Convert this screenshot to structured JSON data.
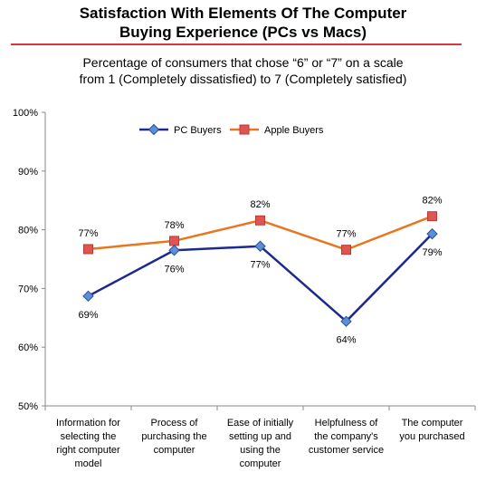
{
  "chart_data": {
    "type": "line",
    "title_lines": [
      "Satisfaction With Elements Of The Computer",
      "Buying Experience (PCs vs Macs)"
    ],
    "subtitle_lines": [
      "Percentage of consumers that chose “6” or “7” on a scale",
      "from 1 (Completely dissatisfied) to 7 (Completely satisfied)"
    ],
    "categories": [
      [
        "Information for",
        "selecting the",
        "right computer",
        "model"
      ],
      [
        "Process of",
        "purchasing the",
        "computer"
      ],
      [
        "Ease of initially",
        "setting up and",
        "using the",
        "computer"
      ],
      [
        "Helpfulness of",
        "the company's",
        "customer service"
      ],
      [
        "The computer",
        "you purchased"
      ]
    ],
    "y_ticks": [
      "50%",
      "60%",
      "70%",
      "80%",
      "90%",
      "100%"
    ],
    "ylim": [
      50,
      100
    ],
    "grid": false,
    "legend_position": "top-center",
    "series": [
      {
        "name": "PC Buyers",
        "values": [
          68.7,
          76.5,
          77.2,
          64.4,
          79.3
        ],
        "labels": [
          "69%",
          "76%",
          "77%",
          "64%",
          "79%"
        ],
        "color": "#1c2a8c",
        "marker": "diamond",
        "marker_color": "#5b8fd6"
      },
      {
        "name": "Apple Buyers",
        "values": [
          76.7,
          78.1,
          81.6,
          76.6,
          82.3
        ],
        "labels": [
          "77%",
          "78%",
          "82%",
          "77%",
          "82%"
        ],
        "color": "#e8761f",
        "marker": "square",
        "marker_color": "#e0554f"
      }
    ]
  }
}
